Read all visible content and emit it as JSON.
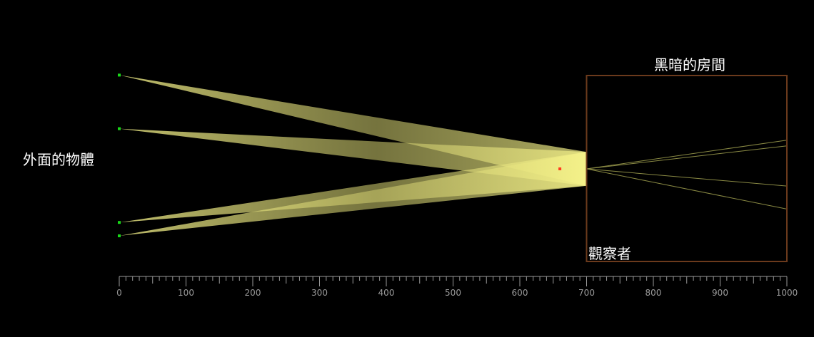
{
  "labels": {
    "outside_object": "外面的物體",
    "dark_room": "黑暗的房間",
    "observer": "觀察者"
  },
  "axis": {
    "min": 0,
    "max": 1000,
    "major_step": 100,
    "minor_step": 10,
    "tick_labels": [
      "0",
      "100",
      "200",
      "300",
      "400",
      "500",
      "600",
      "700",
      "800",
      "900",
      "1000"
    ]
  },
  "scene": {
    "pinhole": {
      "x": 700,
      "y": 0.0
    },
    "observer_point": {
      "x": 660,
      "y": 0.0
    },
    "room": {
      "x_start": 700,
      "x_end": 1000
    },
    "objects": [
      {
        "x": 0,
        "y": 140,
        "beam_half_width_at_pinhole": 14
      },
      {
        "x": 0,
        "y": 60,
        "beam_half_width_at_pinhole": 14
      },
      {
        "x": 0,
        "y": -80,
        "beam_half_width_at_pinhole": 14
      },
      {
        "x": 0,
        "y": -100,
        "beam_half_width_at_pinhole": 14
      }
    ]
  },
  "colors": {
    "background": "#000000",
    "beam": "#f3f07a",
    "room_border": "#6b3a1c",
    "object_marker": "#18d818",
    "observer_marker": "#ff3b1f",
    "axis": "#9a9a9a",
    "inner_ray": "#8a8a44"
  }
}
